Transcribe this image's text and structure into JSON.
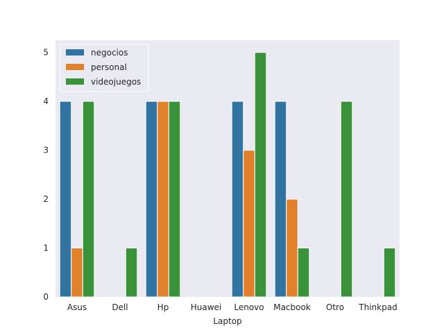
{
  "chart_data": {
    "type": "bar",
    "title": "",
    "xlabel": "Laptop",
    "ylabel": "",
    "categories": [
      "Asus",
      "Dell",
      "Hp",
      "Huawei",
      "Lenovo",
      "Macbook",
      "Otro",
      "Thinkpad"
    ],
    "series": [
      {
        "name": "negocios",
        "color": "#3274a1",
        "values": [
          4,
          0,
          4,
          0,
          4,
          4,
          0,
          0
        ]
      },
      {
        "name": "personal",
        "color": "#e1812c",
        "values": [
          1,
          0,
          4,
          0,
          3,
          2,
          0,
          0
        ]
      },
      {
        "name": "videojuegos",
        "color": "#3a923a",
        "values": [
          4,
          1,
          4,
          0,
          5,
          1,
          4,
          1
        ]
      }
    ],
    "ylim": [
      0,
      5.25
    ],
    "yticks": [
      0,
      1,
      2,
      3,
      4,
      5
    ],
    "grid": false,
    "background": "#eaeaf2",
    "legend_position": "top-left"
  }
}
